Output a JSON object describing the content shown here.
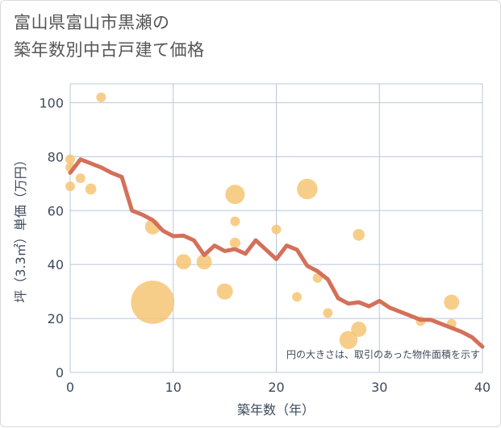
{
  "title_line1": "富山県富山市黒瀬の",
  "title_line2": "築年数別中古戸建て価格",
  "chart_data": {
    "type": "scatter",
    "title": "富山県富山市黒瀬の築年数別中古戸建て価格",
    "xlabel": "築年数（年）",
    "ylabel": "坪（3.3㎡）単価（万円）",
    "xlim": [
      0,
      40
    ],
    "ylim": [
      0,
      107
    ],
    "xticks": [
      0,
      10,
      20,
      30,
      40
    ],
    "yticks": [
      0,
      20,
      40,
      60,
      80,
      100
    ],
    "grid": true,
    "note": "円の大きさは、取引のあった物件面積を示す",
    "colors": {
      "bubble": "#f5c26b",
      "line": "#d4705a",
      "grid": "#b8c8dc"
    },
    "bubbles": [
      {
        "x": 3,
        "y": 102,
        "size": 1
      },
      {
        "x": 0,
        "y": 79,
        "size": 1
      },
      {
        "x": 0,
        "y": 76,
        "size": 1
      },
      {
        "x": 1,
        "y": 72,
        "size": 1
      },
      {
        "x": 0,
        "y": 69,
        "size": 1
      },
      {
        "x": 2,
        "y": 68,
        "size": 1.3
      },
      {
        "x": 8,
        "y": 54,
        "size": 2.5
      },
      {
        "x": 16,
        "y": 66,
        "size": 4
      },
      {
        "x": 16,
        "y": 56,
        "size": 1
      },
      {
        "x": 16,
        "y": 48,
        "size": 1.2
      },
      {
        "x": 11,
        "y": 41,
        "size": 2.5
      },
      {
        "x": 13,
        "y": 41,
        "size": 2.5
      },
      {
        "x": 15,
        "y": 30,
        "size": 2.8
      },
      {
        "x": 8,
        "y": 26,
        "size": 20
      },
      {
        "x": 20,
        "y": 53,
        "size": 1
      },
      {
        "x": 23,
        "y": 68,
        "size": 4.5
      },
      {
        "x": 22,
        "y": 28,
        "size": 1
      },
      {
        "x": 24,
        "y": 35,
        "size": 1
      },
      {
        "x": 25,
        "y": 22,
        "size": 1
      },
      {
        "x": 28,
        "y": 51,
        "size": 1.5
      },
      {
        "x": 28,
        "y": 16,
        "size": 2.5
      },
      {
        "x": 27,
        "y": 12,
        "size": 3.5
      },
      {
        "x": 34,
        "y": 19,
        "size": 1
      },
      {
        "x": 37,
        "y": 26,
        "size": 2.5
      },
      {
        "x": 37,
        "y": 18,
        "size": 1
      }
    ],
    "trend": {
      "x": [
        0,
        1,
        2,
        3,
        4,
        5,
        6,
        7,
        8,
        9,
        10,
        11,
        12,
        13,
        14,
        15,
        16,
        17,
        18,
        19,
        20,
        21,
        22,
        23,
        24,
        25,
        26,
        27,
        28,
        29,
        30,
        31,
        32,
        33,
        34,
        35,
        36,
        37,
        38,
        39,
        40
      ],
      "y": [
        74,
        79,
        77.5,
        76,
        74,
        72.5,
        60,
        58.5,
        56.5,
        52.5,
        50.5,
        50.7,
        49,
        43.5,
        47,
        45,
        45.7,
        44,
        49,
        45.5,
        42,
        47,
        45.5,
        39.5,
        37.5,
        34.5,
        27.5,
        25.5,
        26,
        24.5,
        26.5,
        24,
        22.5,
        21,
        19.5,
        19.5,
        18,
        16.5,
        15,
        13,
        9.5
      ]
    }
  }
}
